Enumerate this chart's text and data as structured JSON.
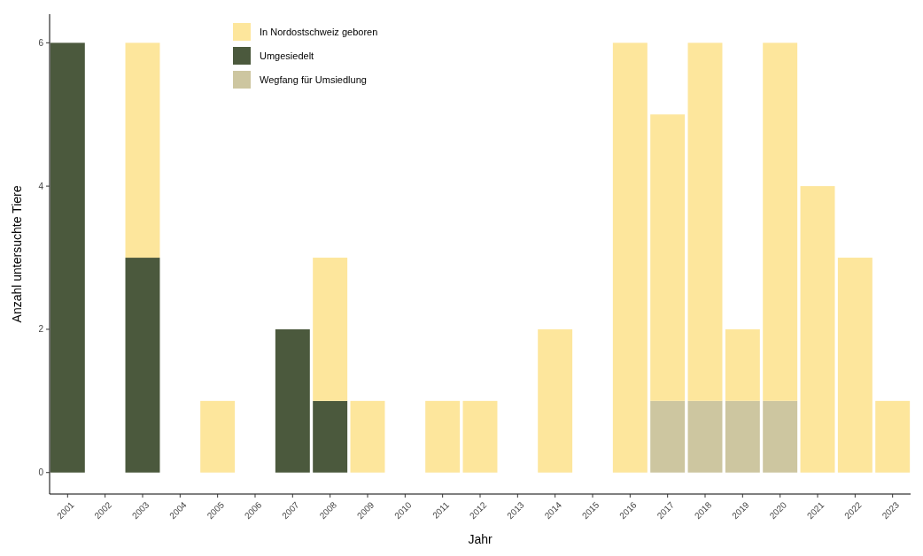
{
  "chart_data": {
    "type": "bar",
    "stacked": true,
    "xlabel": "Jahr",
    "ylabel": "Anzahl untersuchte Tiere",
    "categories": [
      "2001",
      "2002",
      "2003",
      "2004",
      "2005",
      "2006",
      "2007",
      "2008",
      "2009",
      "2010",
      "2011",
      "2012",
      "2013",
      "2014",
      "2015",
      "2016",
      "2017",
      "2018",
      "2019",
      "2020",
      "2021",
      "2022",
      "2023"
    ],
    "series": [
      {
        "name": "Wegfang für Umsiedlung",
        "color": "#cdc6a0",
        "values": [
          0,
          0,
          0,
          0,
          0,
          0,
          0,
          0,
          0,
          0,
          0,
          0,
          0,
          0,
          0,
          0,
          1,
          1,
          1,
          1,
          0,
          0,
          0
        ]
      },
      {
        "name": "Umgesiedelt",
        "color": "#4b593d",
        "values": [
          6,
          0,
          3,
          0,
          0,
          0,
          2,
          1,
          0,
          0,
          0,
          0,
          0,
          0,
          0,
          0,
          0,
          0,
          0,
          0,
          0,
          0,
          0
        ]
      },
      {
        "name": "In Nordostschweiz geboren",
        "color": "#fde69c",
        "values": [
          0,
          0,
          3,
          0,
          1,
          0,
          0,
          2,
          1,
          0,
          1,
          1,
          0,
          2,
          0,
          6,
          4,
          5,
          1,
          5,
          4,
          3,
          1
        ]
      }
    ],
    "ylim": [
      -0.3,
      6.4
    ],
    "yticks": [
      0,
      2,
      4,
      6
    ],
    "grid": false,
    "legend": "top left"
  }
}
